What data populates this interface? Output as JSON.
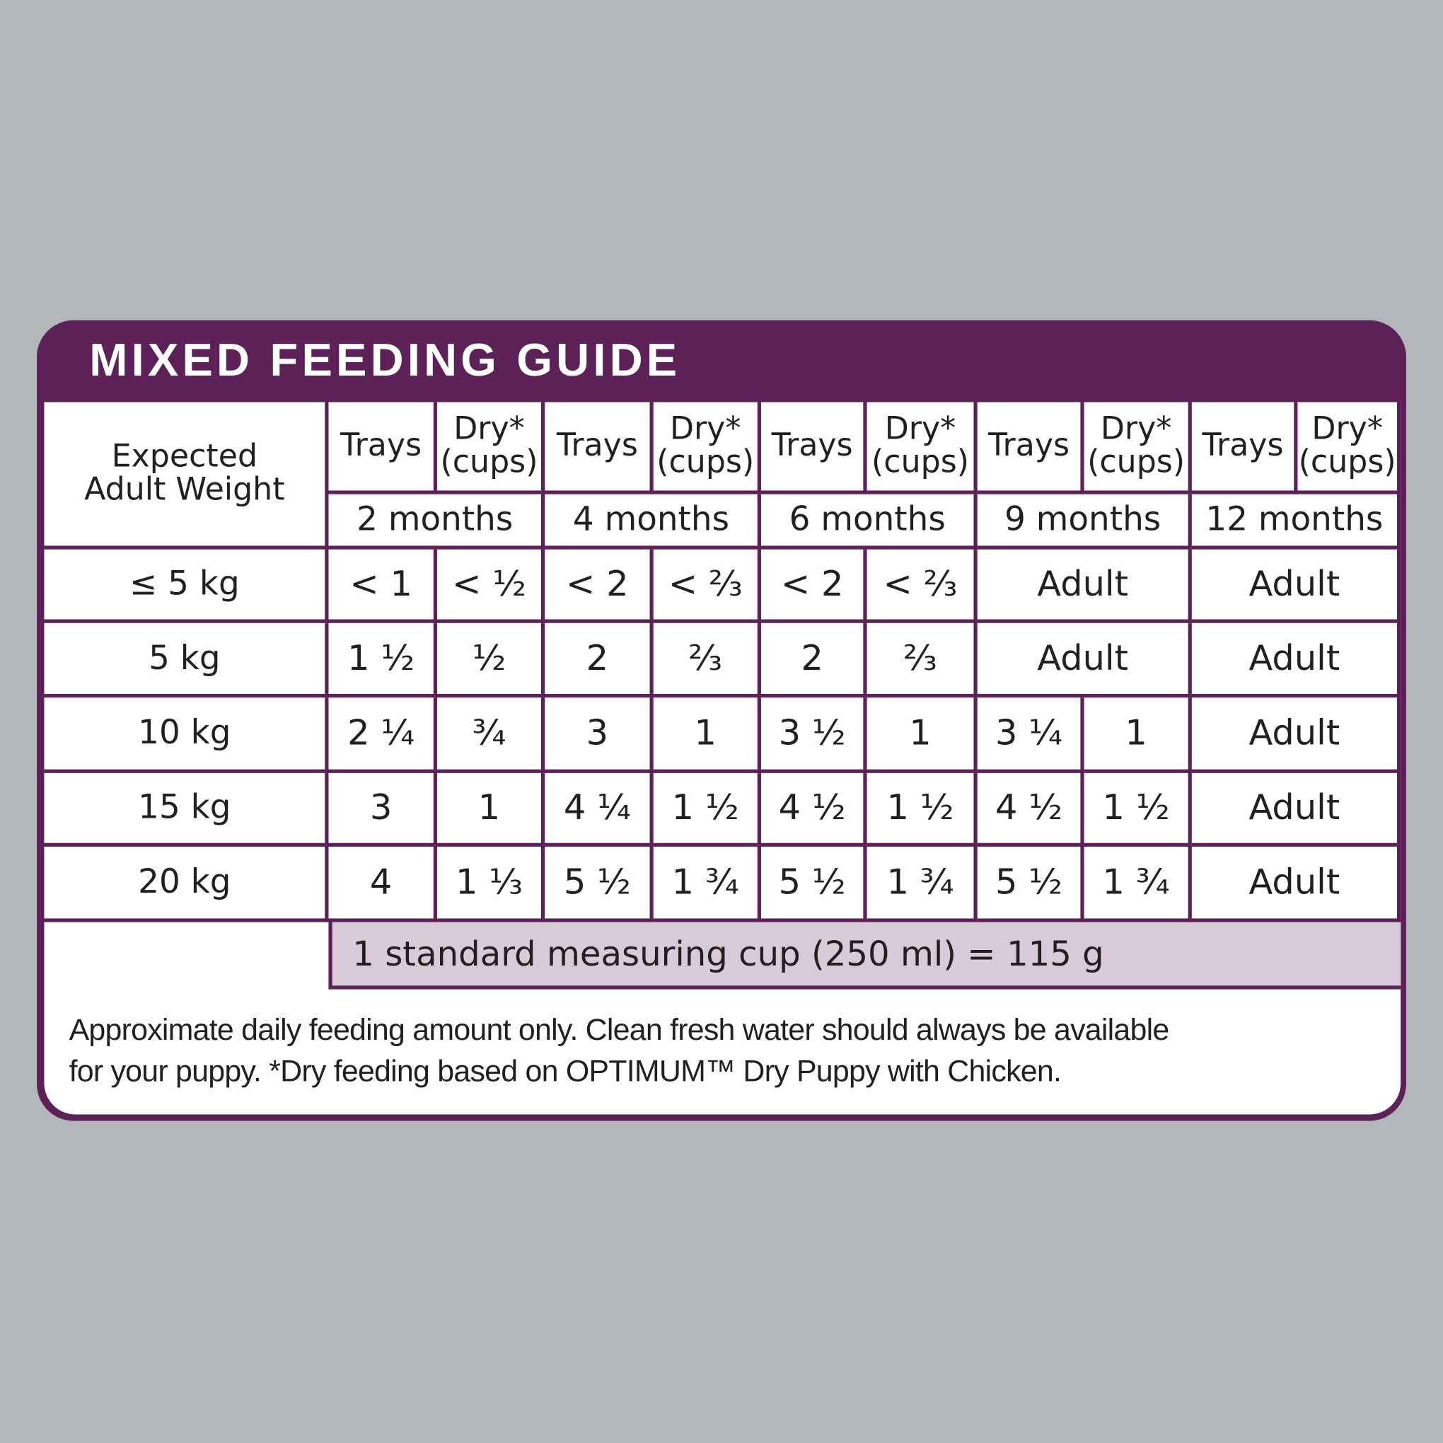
{
  "title": "MIXED FEEDING GUIDE",
  "table": {
    "corner": "Expected\nAdult Weight",
    "groups": [
      {
        "age": "2 months",
        "columns": [
          "Trays",
          "Dry*\n(cups)"
        ]
      },
      {
        "age": "4 months",
        "columns": [
          "Trays",
          "Dry*\n(cups)"
        ]
      },
      {
        "age": "6 months",
        "columns": [
          "Trays",
          "Dry*\n(cups)"
        ]
      },
      {
        "age": "9 months",
        "columns": [
          "Trays",
          "Dry*\n(cups)"
        ]
      },
      {
        "age": "12 months",
        "columns": [
          "Trays",
          "Dry*\n(cups)"
        ]
      }
    ],
    "rows": [
      {
        "weight": "≤ 5 kg",
        "cells": [
          "< 1",
          "< ½",
          "< 2",
          "< ⅔",
          "< 2",
          "< ⅔",
          "Adult",
          "Adult"
        ]
      },
      {
        "weight": "5 kg",
        "cells": [
          "1 ½",
          "½",
          "2",
          "⅔",
          "2",
          "⅔",
          "Adult",
          "Adult"
        ]
      },
      {
        "weight": "10 kg",
        "cells": [
          "2 ¼",
          "¾",
          "3",
          "1",
          "3 ½",
          "1",
          "3 ¼",
          "1",
          "Adult"
        ]
      },
      {
        "weight": "15 kg",
        "cells": [
          "3",
          "1",
          "4 ¼",
          "1 ½",
          "4 ½",
          "1 ½",
          "4 ½",
          "1 ½",
          "Adult"
        ]
      },
      {
        "weight": "20 kg",
        "cells": [
          "4",
          "1 ⅓",
          "5 ½",
          "1 ¾",
          "5 ½",
          "1 ¾",
          "5 ½",
          "1 ¾",
          "Adult"
        ]
      }
    ],
    "conversion": "1 standard measuring cup (250 ml) = 115 g"
  },
  "note": [
    "Approximate daily feeding amount only. Clean fresh water should always be available",
    "for your puppy.  *Dry feeding based on OPTIMUM™ Dry Puppy with Chicken."
  ]
}
